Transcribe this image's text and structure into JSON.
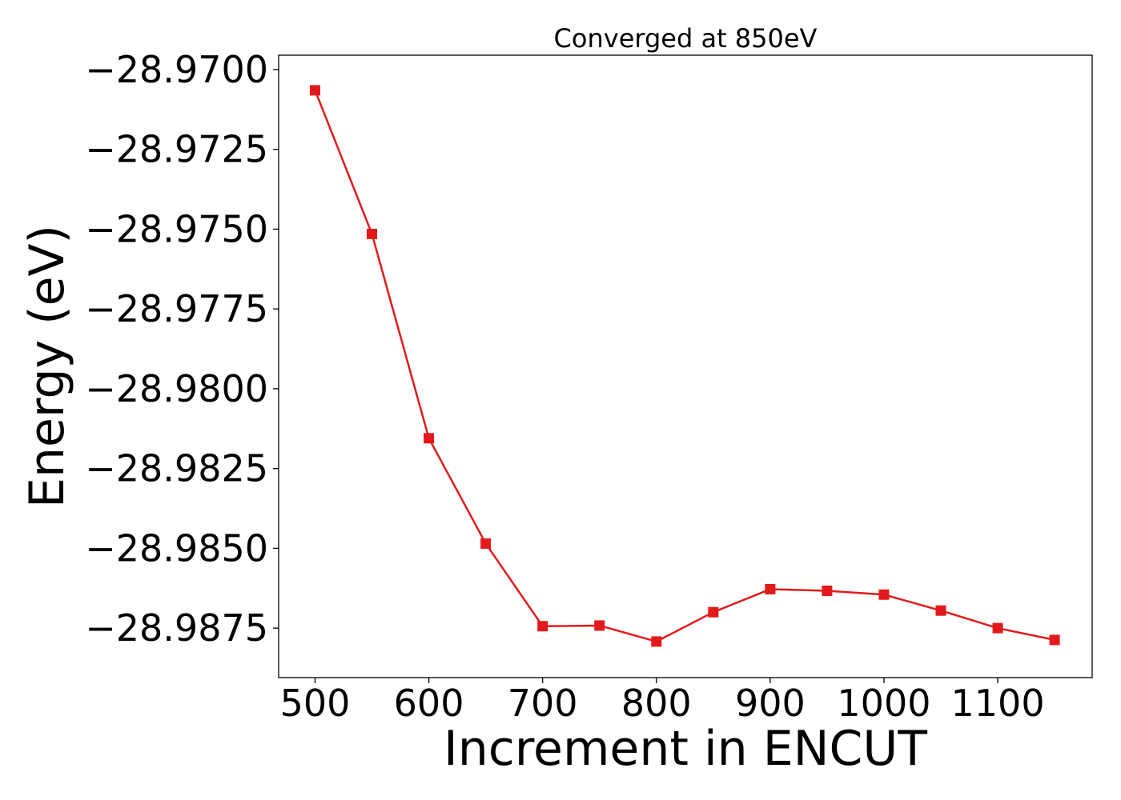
{
  "chart_data": {
    "type": "line",
    "title": "Converged at 850eV",
    "xlabel": "Increment in ENCUT",
    "ylabel": "Energy (eV)",
    "xlim": [
      468,
      1183
    ],
    "ylim": [
      -28.98905,
      -28.96955
    ],
    "x_ticks": [
      500,
      600,
      700,
      800,
      900,
      1000,
      1100
    ],
    "x_tick_labels": [
      "500",
      "600",
      "700",
      "800",
      "900",
      "1000",
      "1100"
    ],
    "y_ticks": [
      -28.97,
      -28.9725,
      -28.975,
      -28.9775,
      -28.98,
      -28.9825,
      -28.985,
      -28.9875
    ],
    "y_tick_labels": [
      "−28.9700",
      "−28.9725",
      "−28.9750",
      "−28.9775",
      "−28.9800",
      "−28.9825",
      "−28.9850",
      "−28.9875"
    ],
    "grid": false,
    "series": [
      {
        "color": "#e31a1c",
        "marker": "square",
        "x": [
          500,
          550,
          600,
          650,
          700,
          750,
          800,
          850,
          900,
          950,
          1000,
          1050,
          1100,
          1150
        ],
        "y": [
          -28.97065,
          -28.97515,
          -28.98155,
          -28.98485,
          -28.98744,
          -28.98742,
          -28.98792,
          -28.987,
          -28.98628,
          -28.98633,
          -28.98645,
          -28.98695,
          -28.9875,
          -28.98787
        ]
      }
    ]
  }
}
